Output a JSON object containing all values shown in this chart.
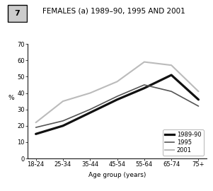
{
  "title": "FEMALES (a) 1989–90, 1995 AND 2001",
  "box_label": "7",
  "x_tick_labels": [
    "18-24",
    "25-34",
    "35-44",
    "45-54",
    "55-64",
    "65-74",
    "75+"
  ],
  "ylabel": "%",
  "xlabel": "Age group (years)",
  "ylim": [
    0,
    70
  ],
  "yticks": [
    0,
    10,
    20,
    30,
    40,
    50,
    60,
    70
  ],
  "y_89": [
    15,
    20,
    28,
    36,
    43,
    51,
    36
  ],
  "y_95": [
    19,
    23,
    30,
    38,
    45,
    41,
    32
  ],
  "y_2001": [
    22,
    35,
    40,
    47,
    59,
    57,
    41
  ],
  "color_89": "#111111",
  "color_95": "#555555",
  "color_2001": "#bbbbbb",
  "lw_89": 2.3,
  "lw_95": 1.2,
  "lw_2001": 1.5,
  "background_color": "#ffffff",
  "title_fontsize": 7.5,
  "axis_fontsize": 6.5,
  "tick_fontsize": 6
}
